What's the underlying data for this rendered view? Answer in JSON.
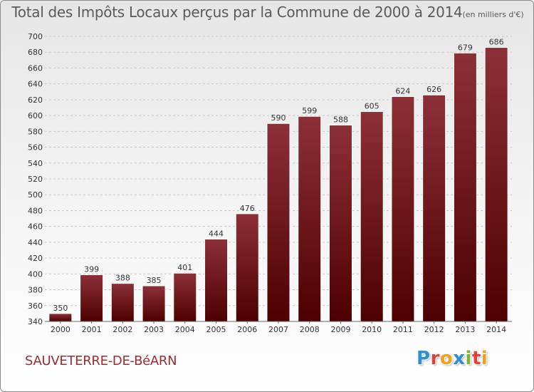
{
  "chart_data": {
    "type": "bar",
    "title": "Total des Impôts Locaux perçus par la Commune de 2000 à 2014",
    "unit_note": "(en milliers d'€)",
    "categories": [
      "2000",
      "2001",
      "2002",
      "2003",
      "2004",
      "2005",
      "2006",
      "2007",
      "2008",
      "2009",
      "2010",
      "2011",
      "2012",
      "2013",
      "2014"
    ],
    "values": [
      350,
      399,
      388,
      385,
      401,
      444,
      476,
      590,
      599,
      588,
      605,
      624,
      626,
      679,
      686
    ],
    "ylim": [
      340,
      700
    ],
    "ytick_step": 20,
    "xlabel": "",
    "ylabel": "",
    "grid": true,
    "bar_color_top": "#8c3037",
    "bar_color_bottom": "#4d0000"
  },
  "footer": {
    "commune": "SAUVETERRE-DE-BéARN",
    "brand_letters": [
      "P",
      "r",
      "o",
      "x",
      "i",
      "t",
      "i"
    ]
  }
}
